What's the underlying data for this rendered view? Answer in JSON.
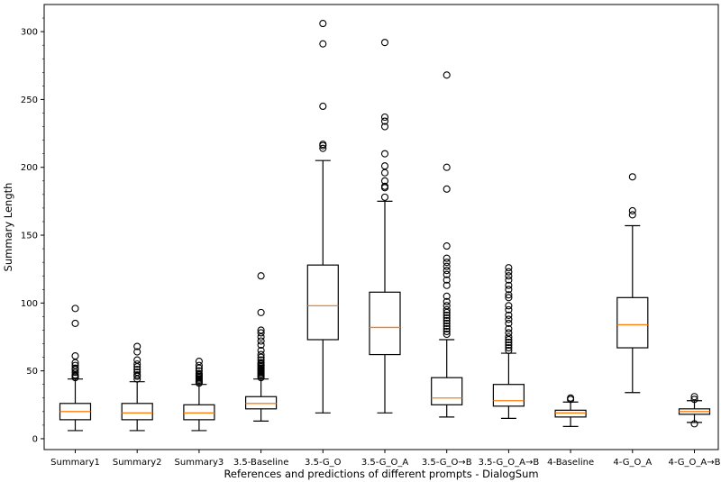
{
  "chart_data": {
    "type": "boxplot",
    "xlabel": "References and predictions of different prompts - DialogSum",
    "ylabel": "Summary Length",
    "ylim": [
      -8,
      320
    ],
    "yticks": [
      0,
      50,
      100,
      150,
      200,
      250,
      300
    ],
    "grid": false,
    "colors": {
      "box": "#000000",
      "median": "#ff7f0e",
      "flier": "#000000"
    },
    "categories": [
      "Summary1",
      "Summary2",
      "Summary3",
      "3.5-Baseline",
      "3.5-G_O",
      "3.5-G_O_A",
      "3.5-G_O→B",
      "3.5-G_O_A→B",
      "4-Baseline",
      "4-G_O_A",
      "4-G_O_A→B"
    ],
    "boxes": [
      {
        "label": "Summary1",
        "whislo": 6,
        "q1": 14,
        "med": 20,
        "q3": 26,
        "whishi": 44,
        "fliers": [
          45,
          46,
          47,
          49,
          51,
          52,
          54,
          56,
          61,
          85,
          96
        ]
      },
      {
        "label": "Summary2",
        "whislo": 6,
        "q1": 14,
        "med": 19,
        "q3": 26,
        "whishi": 42,
        "fliers": [
          44,
          46,
          47,
          49,
          51,
          53,
          55,
          58,
          64,
          68
        ]
      },
      {
        "label": "Summary3",
        "whislo": 6,
        "q1": 14,
        "med": 19,
        "q3": 25,
        "whishi": 40,
        "fliers": [
          41,
          42,
          43,
          44,
          45,
          46,
          47,
          48,
          50,
          52,
          54,
          57
        ]
      },
      {
        "label": "3.5-Baseline",
        "whislo": 13,
        "q1": 22,
        "med": 26,
        "q3": 31,
        "whishi": 44,
        "fliers": [
          45,
          46,
          47,
          48,
          49,
          50,
          51,
          52,
          53,
          54,
          55,
          56,
          58,
          60,
          62,
          65,
          69,
          72,
          75,
          78,
          80,
          93,
          120
        ]
      },
      {
        "label": "3.5-G_O",
        "whislo": 19,
        "q1": 73,
        "med": 98,
        "q3": 128,
        "whishi": 205,
        "fliers": [
          214,
          216,
          217,
          245,
          291,
          306
        ]
      },
      {
        "label": "3.5-G_O_A",
        "whislo": 19,
        "q1": 62,
        "med": 82,
        "q3": 108,
        "whishi": 175,
        "fliers": [
          178,
          185,
          186,
          190,
          196,
          201,
          210,
          230,
          234,
          237,
          292
        ]
      },
      {
        "label": "3.5-G_O→B",
        "whislo": 16,
        "q1": 25,
        "med": 30,
        "q3": 45,
        "whishi": 73,
        "fliers": [
          77,
          79,
          81,
          83,
          85,
          87,
          89,
          91,
          93,
          95,
          98,
          101,
          105,
          113,
          117,
          121,
          124,
          127,
          130,
          133,
          142,
          184,
          200,
          268
        ]
      },
      {
        "label": "3.5-G_O_A→B",
        "whislo": 15,
        "q1": 24,
        "med": 28,
        "q3": 40,
        "whishi": 63,
        "fliers": [
          65,
          67,
          69,
          71,
          73,
          75,
          78,
          81,
          85,
          88,
          91,
          95,
          98,
          104,
          106,
          110,
          113,
          117,
          120,
          123,
          126
        ]
      },
      {
        "label": "4-Baseline",
        "whislo": 9,
        "q1": 16,
        "med": 19,
        "q3": 21,
        "whishi": 27,
        "fliers": [
          29,
          30
        ]
      },
      {
        "label": "4-G_O_A",
        "whislo": 34,
        "q1": 67,
        "med": 84,
        "q3": 104,
        "whishi": 157,
        "fliers": [
          165,
          168,
          193
        ]
      },
      {
        "label": "4-G_O_A→B",
        "whislo": 12,
        "q1": 18,
        "med": 20,
        "q3": 22,
        "whishi": 28,
        "fliers": [
          11,
          29,
          31
        ]
      }
    ]
  }
}
